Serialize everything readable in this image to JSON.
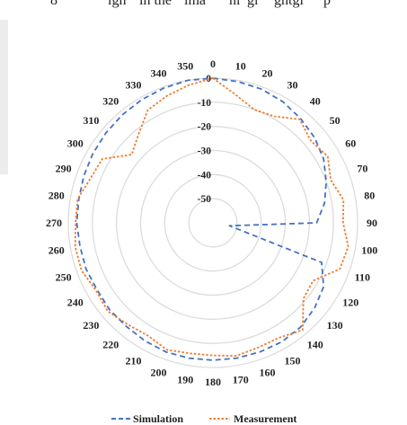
{
  "top_fragment": [
    "8",
    "ign",
    "in the",
    "ima",
    "hl",
    "gi",
    "ghtgi",
    "p"
  ],
  "chart_data": {
    "type": "polar-line",
    "angle_tick_labels": [
      "0",
      "10",
      "20",
      "30",
      "40",
      "50",
      "60",
      "70",
      "80",
      "90",
      "100",
      "110",
      "120",
      "130",
      "140",
      "150",
      "160",
      "170",
      "180",
      "190",
      "200",
      "210",
      "220",
      "230",
      "240",
      "250",
      "260",
      "270",
      "280",
      "290",
      "300",
      "310",
      "320",
      "330",
      "340",
      "350"
    ],
    "radial_tick_labels": [
      "0",
      "-10",
      "-20",
      "-30",
      "-40",
      "-50"
    ],
    "rlim": [
      -60,
      0
    ],
    "angle_direction": "clockwise",
    "zero_location": "top",
    "grid": true,
    "legend_position": "bottom",
    "series": [
      {
        "name": "Simulation",
        "color": "#4472c4",
        "dash": "dashed",
        "angles": [
          0,
          10,
          20,
          30,
          40,
          50,
          60,
          70,
          80,
          90,
          100,
          110,
          120,
          130,
          140,
          150,
          160,
          170,
          180,
          190,
          200,
          210,
          220,
          230,
          240,
          250,
          260,
          270,
          280,
          290,
          300,
          310,
          320,
          330,
          340,
          350
        ],
        "values": [
          0,
          -0.5,
          -1,
          -2,
          -3.5,
          -5,
          -7,
          -10,
          -13,
          -17,
          -53,
          -12,
          -7,
          -5,
          -3.5,
          -3,
          -3,
          -3,
          -3,
          -3,
          -3,
          -3.5,
          -4,
          -4,
          -4.5,
          -4,
          -4,
          -3.5,
          -3.5,
          -3,
          -2.5,
          -2,
          -1.5,
          -1,
          -0.5,
          0
        ]
      },
      {
        "name": "Measurement",
        "color": "#ed7d31",
        "dash": "dotted",
        "angles": [
          0,
          10,
          20,
          30,
          40,
          50,
          60,
          70,
          80,
          90,
          100,
          110,
          120,
          130,
          140,
          150,
          160,
          170,
          180,
          190,
          200,
          210,
          220,
          230,
          240,
          250,
          260,
          270,
          280,
          290,
          300,
          310,
          320,
          330,
          340,
          350
        ],
        "values": [
          0,
          -6,
          -10,
          -9,
          -4,
          -7,
          -5,
          -8,
          -5,
          -6,
          -3,
          -4,
          -12,
          -11,
          -2,
          -5,
          -5,
          -4,
          -5,
          -5,
          -4,
          -6,
          -5,
          -3,
          -4,
          -2,
          -2,
          -3,
          -3,
          -6,
          -7,
          -16,
          -12,
          -6,
          -4,
          -2
        ]
      }
    ]
  }
}
